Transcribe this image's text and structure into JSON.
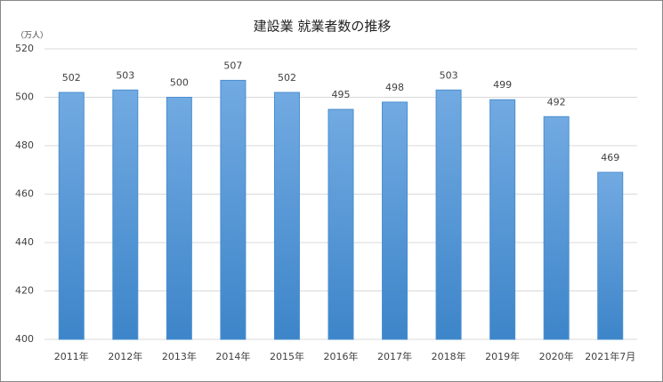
{
  "chart_data": {
    "type": "bar",
    "title": "建設業 就業者数の推移",
    "y_unit": "（万人）",
    "categories": [
      "2011年",
      "2012年",
      "2013年",
      "2014年",
      "2015年",
      "2016年",
      "2017年",
      "2018年",
      "2019年",
      "2020年",
      "2021年7月"
    ],
    "values": [
      502,
      503,
      500,
      507,
      502,
      495,
      498,
      503,
      499,
      492,
      469
    ],
    "color": "#5b9bd5",
    "ylim": [
      400,
      520
    ],
    "yticks": [
      400,
      420,
      440,
      460,
      480,
      500,
      520
    ],
    "grid": true
  }
}
